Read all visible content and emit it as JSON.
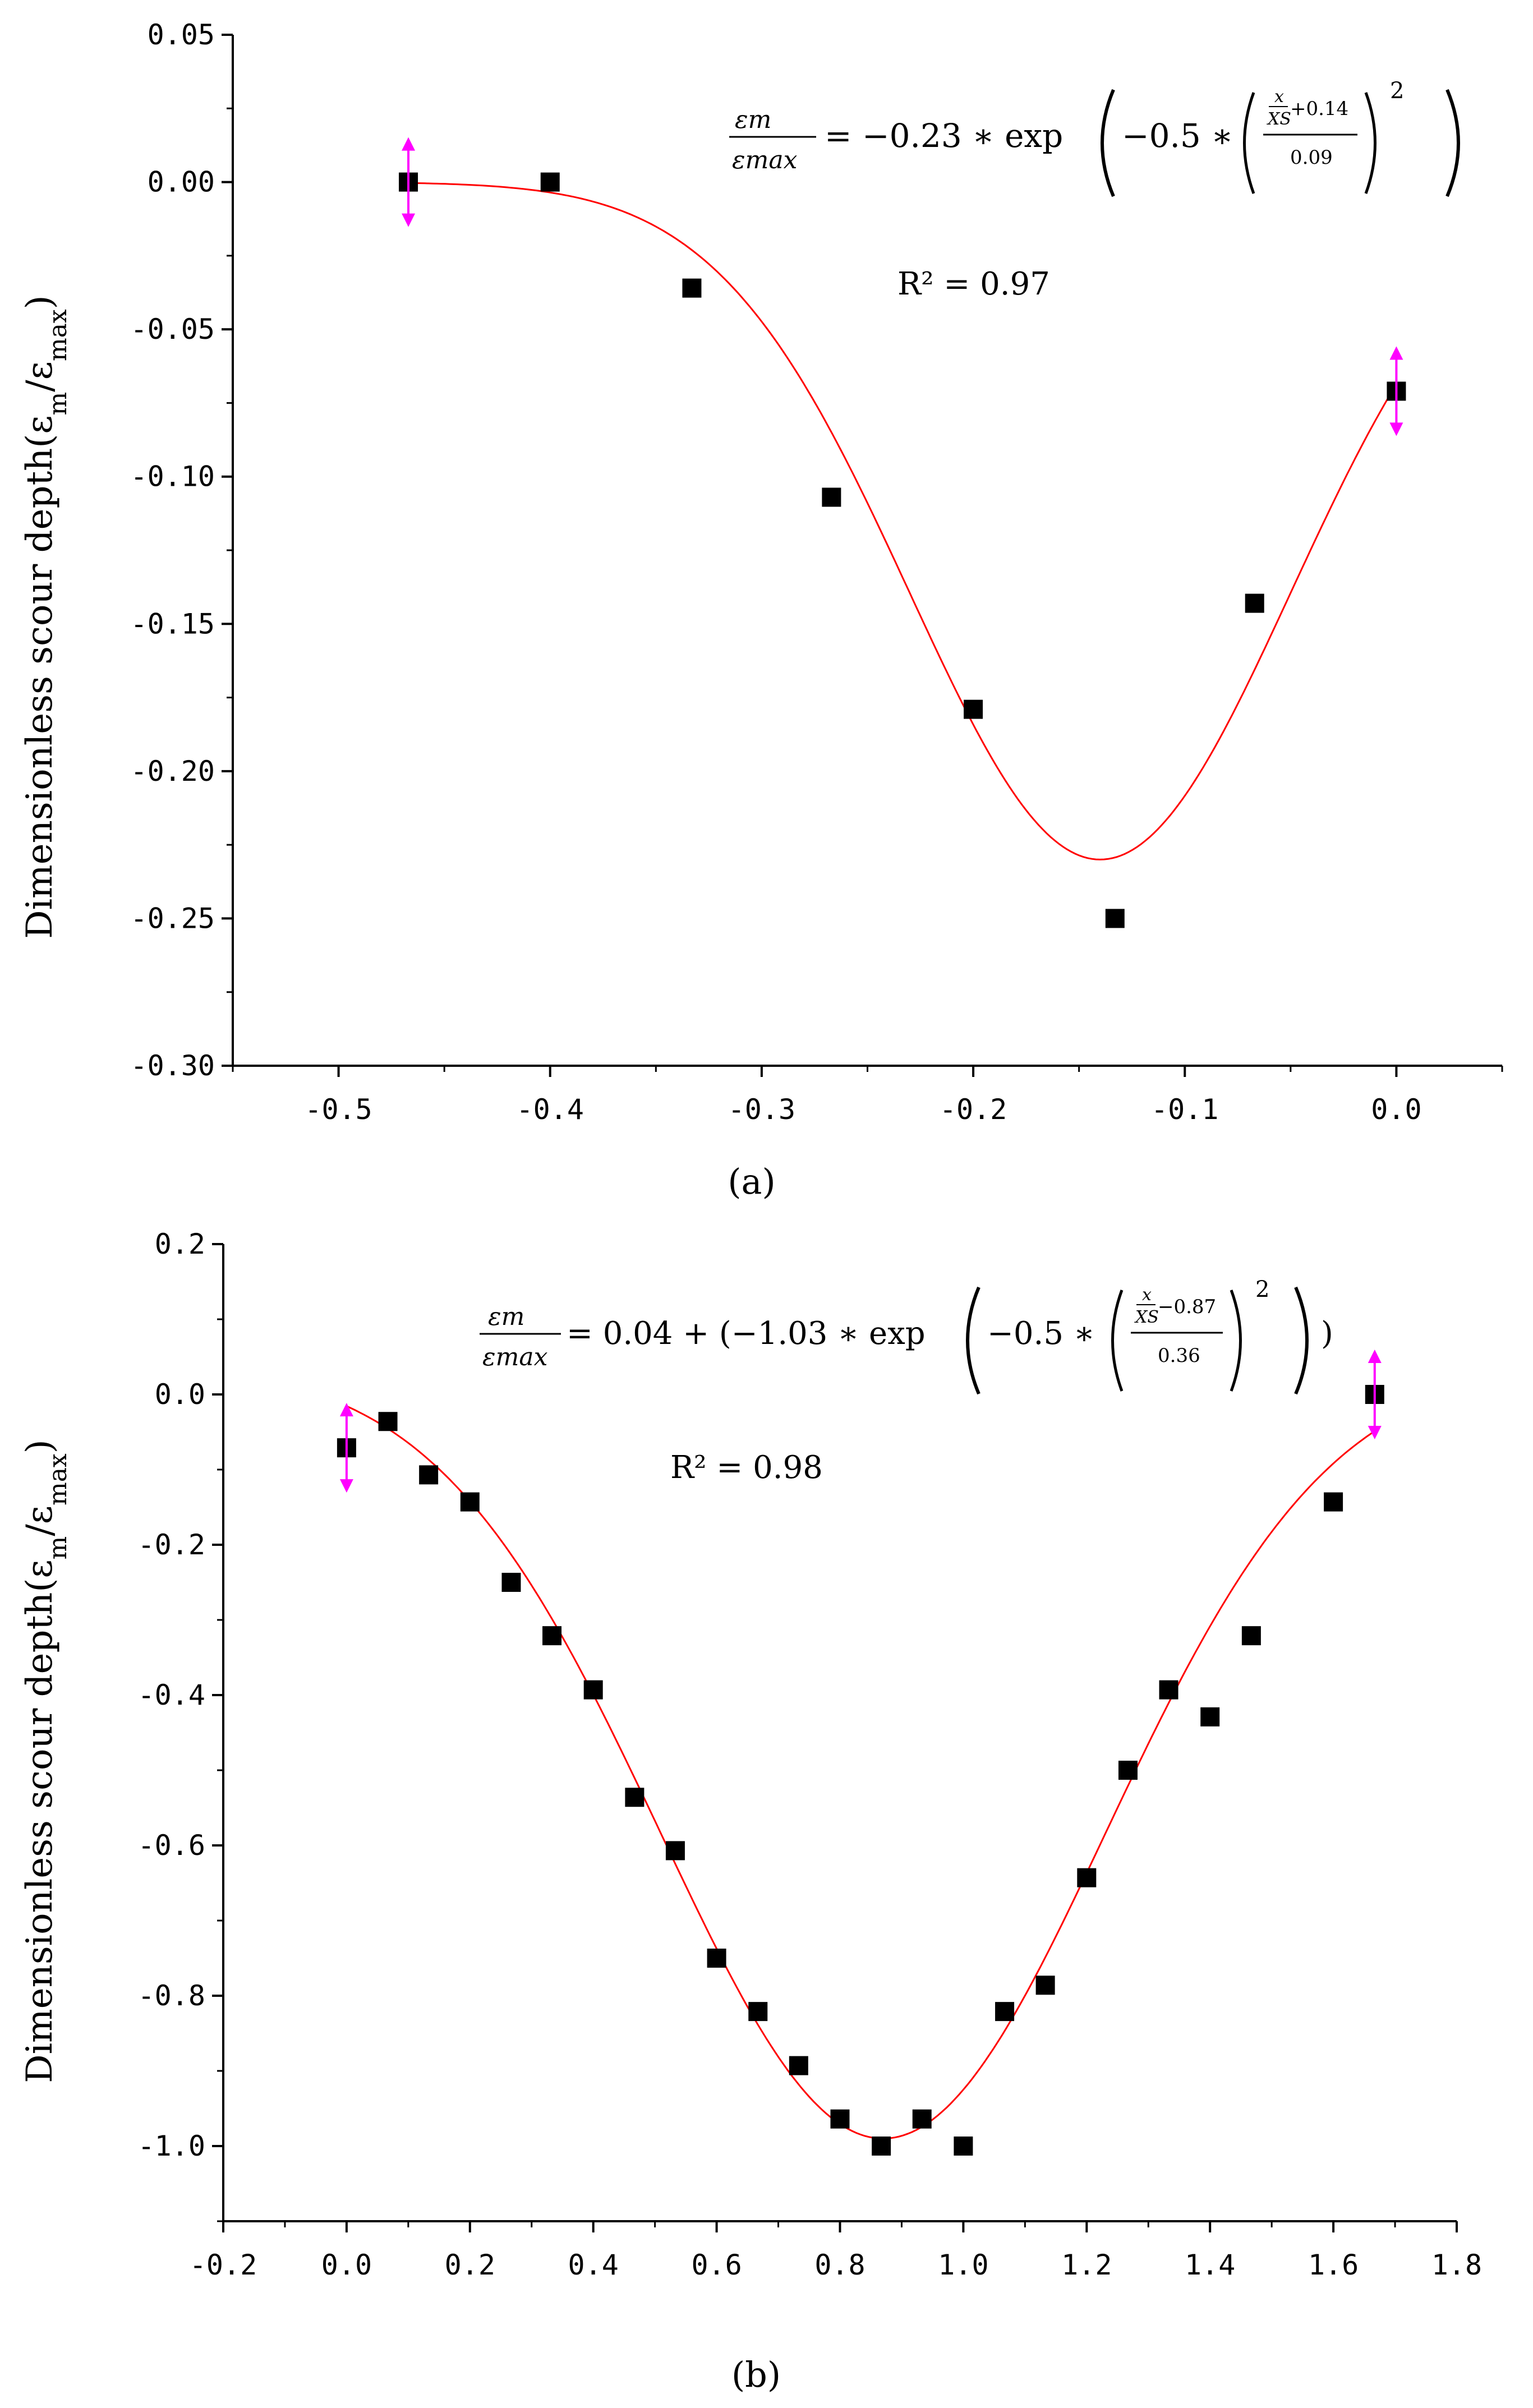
{
  "chart_data": [
    {
      "type": "scatter",
      "panel_label": "(a)",
      "ylabel": "Dimensionless scour depth(εm/εmax)",
      "ylabel_parts": {
        "pre": "Dimensionless scour depth(ε",
        "sub1": "m",
        "mid": "/ε",
        "sub2": "max",
        "post": ")"
      },
      "xlabel": "",
      "xlim": [
        -0.55,
        0.05
      ],
      "ylim": [
        -0.3,
        0.05
      ],
      "xticks": [
        -0.5,
        -0.4,
        -0.3,
        -0.2,
        -0.1,
        0.0
      ],
      "xtick_labels": [
        "-0.5",
        "-0.4",
        "-0.3",
        "-0.2",
        "-0.1",
        "0.0"
      ],
      "yticks": [
        0.05,
        0.0,
        -0.05,
        -0.1,
        -0.15,
        -0.2,
        -0.25,
        -0.3
      ],
      "ytick_labels": [
        "0.05",
        "0.00",
        "-0.05",
        "-0.10",
        "-0.15",
        "-0.20",
        "-0.25",
        "-0.30"
      ],
      "points": {
        "x": [
          -0.467,
          -0.4,
          -0.333,
          -0.267,
          -0.2,
          -0.133,
          -0.067,
          0.0
        ],
        "y": [
          0.0,
          0.0,
          -0.036,
          -0.107,
          -0.179,
          -0.25,
          -0.143,
          -0.071
        ]
      },
      "fit": {
        "model": "gauss",
        "y0": 0.0,
        "A": -0.23,
        "xc": -0.14,
        "w": 0.09,
        "x_range": [
          -0.467,
          0.0
        ],
        "color": "#ff0000"
      },
      "equation": {
        "lhs_num": "εm",
        "lhs_den": "εmax",
        "body": "= −0.23 ∗ exp",
        "inner": "−0.5 ∗",
        "frac_num_a": "x",
        "frac_num_b": "XS",
        "frac_num_c": "+0.14",
        "frac_den": "0.09",
        "power": "2"
      },
      "r2_label": "R² = 0.97",
      "marker_color": "#000000",
      "endpoint_marker_color": "#ff00ff"
    },
    {
      "type": "scatter",
      "panel_label": "(b)",
      "ylabel": "Dimensionless scour depth(εm/εmax)",
      "ylabel_parts": {
        "pre": "Dimensionless scour depth(ε",
        "sub1": "m",
        "mid": "/ε",
        "sub2": "max",
        "post": ")"
      },
      "xlabel": "",
      "xlim": [
        -0.2,
        1.8
      ],
      "ylim": [
        -1.1,
        0.2
      ],
      "xticks": [
        -0.2,
        0.0,
        0.2,
        0.4,
        0.6,
        0.8,
        1.0,
        1.2,
        1.4,
        1.6,
        1.8
      ],
      "xtick_labels": [
        "-0.2",
        "0.0",
        "0.2",
        "0.4",
        "0.6",
        "0.8",
        "1.0",
        "1.2",
        "1.4",
        "1.6",
        "1.8"
      ],
      "yticks": [
        0.2,
        0.0,
        -0.2,
        -0.4,
        -0.6,
        -0.8,
        -1.0
      ],
      "ytick_labels": [
        "0.2",
        "0.0",
        "-0.2",
        "-0.4",
        "-0.6",
        "-0.8",
        "-1.0"
      ],
      "points": {
        "x": [
          0.0,
          0.067,
          0.133,
          0.2,
          0.267,
          0.333,
          0.4,
          0.467,
          0.533,
          0.6,
          0.667,
          0.733,
          0.8,
          0.867,
          0.933,
          1.0,
          1.067,
          1.133,
          1.2,
          1.267,
          1.333,
          1.4,
          1.467,
          1.6,
          1.667
        ],
        "y": [
          -0.071,
          -0.036,
          -0.107,
          -0.143,
          -0.25,
          -0.321,
          -0.393,
          -0.536,
          -0.607,
          -0.75,
          -0.821,
          -0.893,
          -0.964,
          -1.0,
          -0.964,
          -1.0,
          -0.821,
          -0.786,
          -0.643,
          -0.5,
          -0.393,
          -0.429,
          -0.321,
          -0.143,
          0.0
        ]
      },
      "fit": {
        "model": "gauss",
        "y0": 0.04,
        "A": -1.03,
        "xc": 0.87,
        "w": 0.36,
        "x_range": [
          0.0,
          1.667
        ],
        "color": "#ff0000"
      },
      "equation": {
        "lhs_num": "εm",
        "lhs_den": "εmax",
        "body": "= 0.04 + (−1.03 ∗ exp",
        "inner": "−0.5 ∗",
        "frac_num_a": "x",
        "frac_num_b": "XS",
        "frac_num_c": "−0.87",
        "frac_den": "0.36",
        "power": "2",
        "tail": ")"
      },
      "r2_label": "R² = 0.98",
      "marker_color": "#000000",
      "endpoint_marker_color": "#ff00ff"
    }
  ]
}
